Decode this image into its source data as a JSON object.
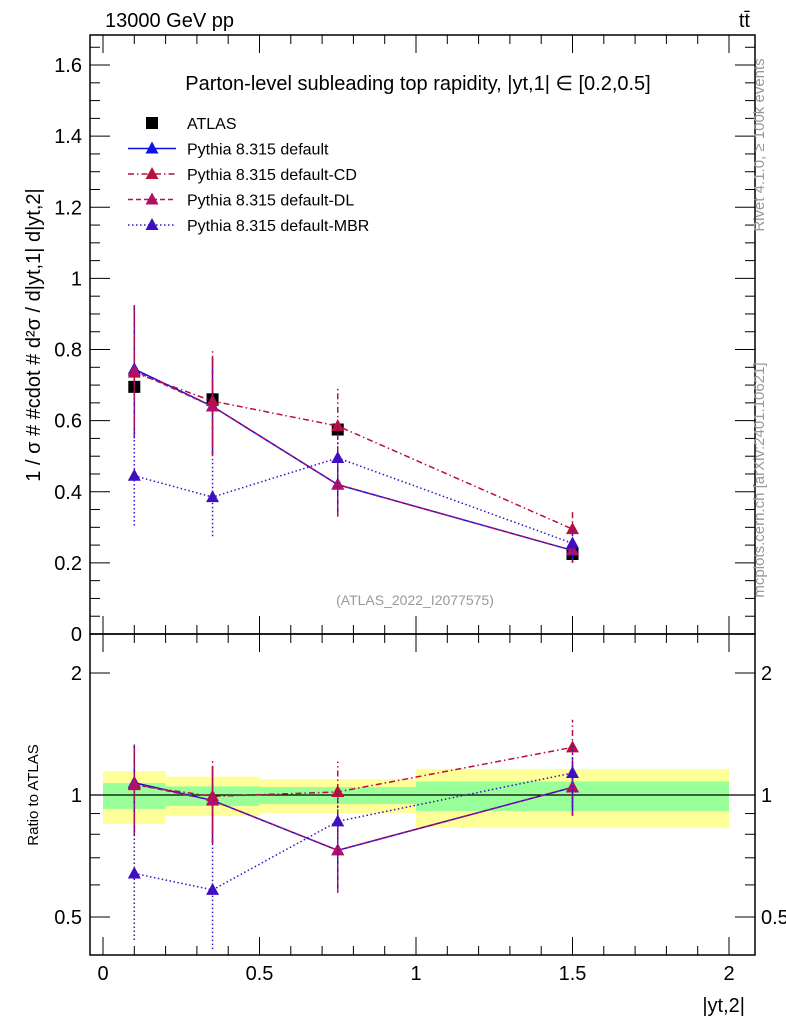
{
  "header": {
    "energy": "13000 GeV pp",
    "process": "tt̄"
  },
  "side_text": {
    "rivet": "Rivet 4.1.0, ≥ 100k events",
    "mcplots": "mcplots.cern.ch [arXiv:2401.10621]"
  },
  "colors": {
    "ATLAS": "#000000",
    "default": "#1010e0",
    "default-CD": "#b8103c",
    "default-DL": "#b01068",
    "default-MBR": "#4010c0",
    "band_total": "#ffff99",
    "band_stat": "#99ff99"
  },
  "chart_data": [
    {
      "type": "line",
      "title": "Parton-level subleading top rapidity, |y^{t,1}| ∈ [0.2,0.5]",
      "title_text": "Parton-level subleading top rapidity, |yt,1| ∈ [0.2,0.5]",
      "ylabel": "1 / σ # #cdot # d²σ / d|yt,1| d|yt,2|",
      "xlabel": "|yt,2|",
      "watermark": "(ATLAS_2022_I2077575)",
      "xlim": [
        -0.05,
        2.05
      ],
      "ylim": [
        0,
        1.68
      ],
      "yticks": [
        "0",
        "0.2",
        "0.4",
        "0.6",
        "0.8",
        "1",
        "1.2",
        "1.4",
        "1.6"
      ],
      "x": [
        0.1,
        0.35,
        0.75,
        1.5
      ],
      "bins": [
        [
          0,
          0.2
        ],
        [
          0.2,
          0.5
        ],
        [
          0.5,
          1.0
        ],
        [
          1.0,
          2.0
        ]
      ],
      "series": [
        {
          "name": "ATLAS",
          "marker": "square",
          "style": "none",
          "values": [
            0.695,
            0.66,
            0.575,
            0.225
          ],
          "err_lo": [
            0.05,
            0.05,
            0.04,
            0.025
          ],
          "err_hi": [
            0.05,
            0.05,
            0.04,
            0.025
          ]
        },
        {
          "name": "Pythia 8.315 default",
          "marker": "triangle",
          "style": "solid",
          "values": [
            0.745,
            0.64,
            0.42,
            0.235
          ],
          "err_lo": [
            0.56,
            0.503,
            0.33,
            0.2
          ],
          "err_hi": [
            0.925,
            0.776,
            0.5,
            0.27
          ]
        },
        {
          "name": "Pythia 8.315 default-CD",
          "marker": "triangle",
          "style": "dashdot",
          "values": [
            0.735,
            0.655,
            0.585,
            0.295
          ],
          "err_lo": [
            0.55,
            0.5,
            0.47,
            0.25
          ],
          "err_hi": [
            0.925,
            0.8,
            0.695,
            0.345
          ]
        },
        {
          "name": "Pythia 8.315 default-DL",
          "marker": "triangle",
          "style": "dashed",
          "values": [
            0.74,
            0.64,
            0.42,
            0.235
          ],
          "err_lo": [
            0.56,
            0.503,
            0.33,
            0.2
          ],
          "err_hi": [
            0.925,
            0.776,
            0.5,
            0.27
          ]
        },
        {
          "name": "Pythia 8.315 default-MBR",
          "marker": "triangle",
          "style": "dotted",
          "values": [
            0.445,
            0.385,
            0.495,
            0.255
          ],
          "err_lo": [
            0.305,
            0.275,
            0.4,
            0.21
          ],
          "err_hi": [
            0.585,
            0.5,
            0.59,
            0.3
          ]
        }
      ]
    },
    {
      "type": "line",
      "ylabel": "Ratio to ATLAS",
      "yscale": "log",
      "ylim": [
        0.4,
        2.5
      ],
      "yticks": [
        "0.5",
        "1",
        "2"
      ],
      "xticks": [
        "0",
        "0.5",
        "1",
        "1.5",
        "2"
      ],
      "band_stat": [
        [
          0.924,
          1.07
        ],
        [
          0.94,
          1.05
        ],
        [
          0.95,
          1.046
        ],
        [
          0.913,
          1.08
        ]
      ],
      "band_total": [
        [
          0.848,
          1.146
        ],
        [
          0.887,
          1.11
        ],
        [
          0.903,
          1.095
        ],
        [
          0.83,
          1.16
        ]
      ]
    }
  ]
}
